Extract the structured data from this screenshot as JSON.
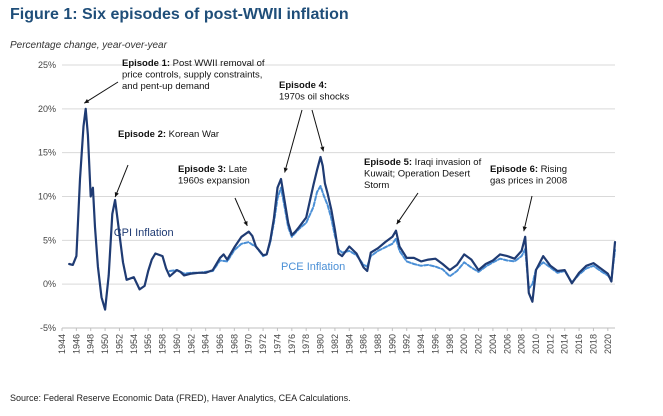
{
  "title": "Figure 1: Six episodes of post-WWII inflation",
  "subtitle": "Percentage change, year-over-year",
  "source": "Source: Federal Reserve Economic Data (FRED), Haver Analytics, CEA Calculations.",
  "colors": {
    "cpi": "#1f3b73",
    "pce": "#4a8fd6",
    "title": "#1f4e79",
    "grid": "#d9d9d9"
  },
  "chart_data": {
    "type": "line",
    "xlim": [
      1944,
      2021
    ],
    "ylim": [
      -5,
      25
    ],
    "grid": true,
    "y_ticks": [
      "25%",
      "20%",
      "15%",
      "10%",
      "5%",
      "0%",
      "-5%"
    ],
    "x_ticks": [
      "1944",
      "1946",
      "1948",
      "1950",
      "1952",
      "1954",
      "1956",
      "1958",
      "1960",
      "1962",
      "1964",
      "1966",
      "1968",
      "1970",
      "1972",
      "1974",
      "1976",
      "1978",
      "1980",
      "1982",
      "1984",
      "1986",
      "1988",
      "1990",
      "1992",
      "1994",
      "1996",
      "1998",
      "2000",
      "2002",
      "2004",
      "2006",
      "2008",
      "2010",
      "2012",
      "2014",
      "2016",
      "2018",
      "2020"
    ],
    "series": [
      {
        "name": "CPI Inflation",
        "x": [
          1945,
          1945.5,
          1946,
          1946.5,
          1947,
          1947.3,
          1947.6,
          1948,
          1948.3,
          1948.6,
          1949,
          1949.5,
          1950,
          1950.5,
          1951,
          1951.4,
          1951.8,
          1952.5,
          1953,
          1954,
          1954.8,
          1955.5,
          1956,
          1956.5,
          1957,
          1958,
          1958.5,
          1959,
          1960,
          1960.5,
          1961,
          1962,
          1963,
          1964,
          1965,
          1966,
          1966.5,
          1967,
          1968,
          1969,
          1970,
          1970.5,
          1971,
          1972,
          1972.5,
          1973,
          1973.5,
          1974,
          1974.5,
          1975,
          1975.5,
          1976,
          1976.5,
          1977,
          1978,
          1979,
          1979.5,
          1980,
          1980.3,
          1980.6,
          1981,
          1981.5,
          1982,
          1982.5,
          1983,
          1984,
          1985,
          1986,
          1986.5,
          1987,
          1988,
          1989,
          1990,
          1990.5,
          1991,
          1992,
          1993,
          1994,
          1995,
          1996,
          1997,
          1998,
          1999,
          2000,
          2001,
          2002,
          2003,
          2004,
          2005,
          2006,
          2007,
          2008,
          2008.5,
          2009,
          2009.5,
          2010,
          2011,
          2012,
          2013,
          2014,
          2015,
          2016,
          2017,
          2018,
          2019,
          2020,
          2020.5,
          2021
        ],
        "values": [
          2.3,
          2.2,
          3.2,
          12,
          18,
          20,
          17,
          10,
          11,
          6.5,
          2,
          -1.5,
          -2.9,
          1,
          8,
          9.6,
          7,
          2.5,
          0.5,
          0.8,
          -0.6,
          -0.2,
          1.5,
          2.8,
          3.5,
          3.2,
          1.8,
          0.9,
          1.6,
          1.4,
          1.0,
          1.2,
          1.3,
          1.3,
          1.6,
          3.0,
          3.4,
          2.8,
          4.2,
          5.4,
          6.0,
          5.5,
          4.3,
          3.3,
          3.4,
          5.0,
          7.5,
          11.0,
          12.0,
          9.5,
          7.0,
          5.6,
          6.0,
          6.5,
          7.6,
          11.3,
          13.0,
          14.5,
          13.5,
          11.5,
          10.3,
          8.5,
          6.2,
          3.5,
          3.2,
          4.3,
          3.5,
          1.9,
          1.5,
          3.6,
          4.1,
          4.8,
          5.4,
          6.1,
          4.3,
          3.0,
          3.0,
          2.6,
          2.8,
          2.9,
          2.3,
          1.6,
          2.2,
          3.4,
          2.8,
          1.6,
          2.3,
          2.7,
          3.4,
          3.2,
          2.9,
          3.8,
          5.4,
          -1.0,
          -2.0,
          1.6,
          3.2,
          2.1,
          1.5,
          1.6,
          0.1,
          1.3,
          2.1,
          2.4,
          1.8,
          1.2,
          0.3,
          4.8
        ]
      },
      {
        "name": "PCE Inflation",
        "x": [
          1959,
          1960,
          1961,
          1962,
          1963,
          1964,
          1965,
          1966,
          1967,
          1968,
          1969,
          1970,
          1970.5,
          1971,
          1972,
          1972.5,
          1973,
          1973.5,
          1974,
          1974.5,
          1975,
          1975.5,
          1976,
          1977,
          1978,
          1979,
          1979.5,
          1980,
          1980.5,
          1981,
          1981.5,
          1982,
          1982.5,
          1983,
          1984,
          1985,
          1986,
          1986.5,
          1987,
          1988,
          1989,
          1990,
          1990.5,
          1991,
          1992,
          1993,
          1994,
          1995,
          1996,
          1997,
          1998,
          1999,
          2000,
          2001,
          2002,
          2003,
          2004,
          2005,
          2006,
          2007,
          2008,
          2008.5,
          2009,
          2009.5,
          2010,
          2011,
          2012,
          2013,
          2014,
          2015,
          2016,
          2017,
          2018,
          2019,
          2020,
          2020.5,
          2021
        ],
        "values": [
          1.5,
          1.6,
          1.2,
          1.3,
          1.3,
          1.4,
          1.5,
          2.7,
          2.6,
          3.9,
          4.6,
          4.8,
          4.5,
          4.3,
          3.2,
          3.4,
          4.8,
          7.0,
          9.8,
          11.0,
          8.8,
          6.5,
          5.4,
          6.3,
          7.0,
          8.8,
          10.5,
          11.2,
          10.0,
          9.0,
          7.5,
          5.5,
          4.0,
          3.6,
          3.8,
          3.3,
          2.2,
          2.0,
          3.2,
          3.8,
          4.2,
          4.6,
          5.2,
          3.8,
          2.6,
          2.3,
          2.1,
          2.2,
          2.0,
          1.7,
          0.9,
          1.5,
          2.5,
          1.9,
          1.4,
          2.0,
          2.5,
          2.9,
          2.7,
          2.6,
          3.2,
          4.0,
          -0.5,
          0.0,
          1.7,
          2.5,
          1.9,
          1.3,
          1.5,
          0.2,
          1.1,
          1.8,
          2.1,
          1.5,
          1.0,
          0.5,
          3.9
        ]
      }
    ],
    "series_labels": [
      "CPI Inflation",
      "PCE Inflation"
    ],
    "annotations": [
      {
        "bold": "Episode 1:",
        "lines": [
          "Post WWII removal of",
          "price controls, supply constraints,",
          "and pent-up demand"
        ]
      },
      {
        "bold": "Episode 2:",
        "lines": [
          "Korean War"
        ]
      },
      {
        "bold": "Episode 3:",
        "lines": [
          "Late",
          "1960s expansion"
        ]
      },
      {
        "bold": "Episode 4:",
        "lines": [
          "1970s oil shocks"
        ]
      },
      {
        "bold": "Episode 5:",
        "lines": [
          "Iraqi invasion of",
          "Kuwait; Operation Desert",
          "Storm"
        ]
      },
      {
        "bold": "Episode 6:",
        "lines": [
          "Rising",
          "gas prices in 2008"
        ]
      }
    ]
  }
}
